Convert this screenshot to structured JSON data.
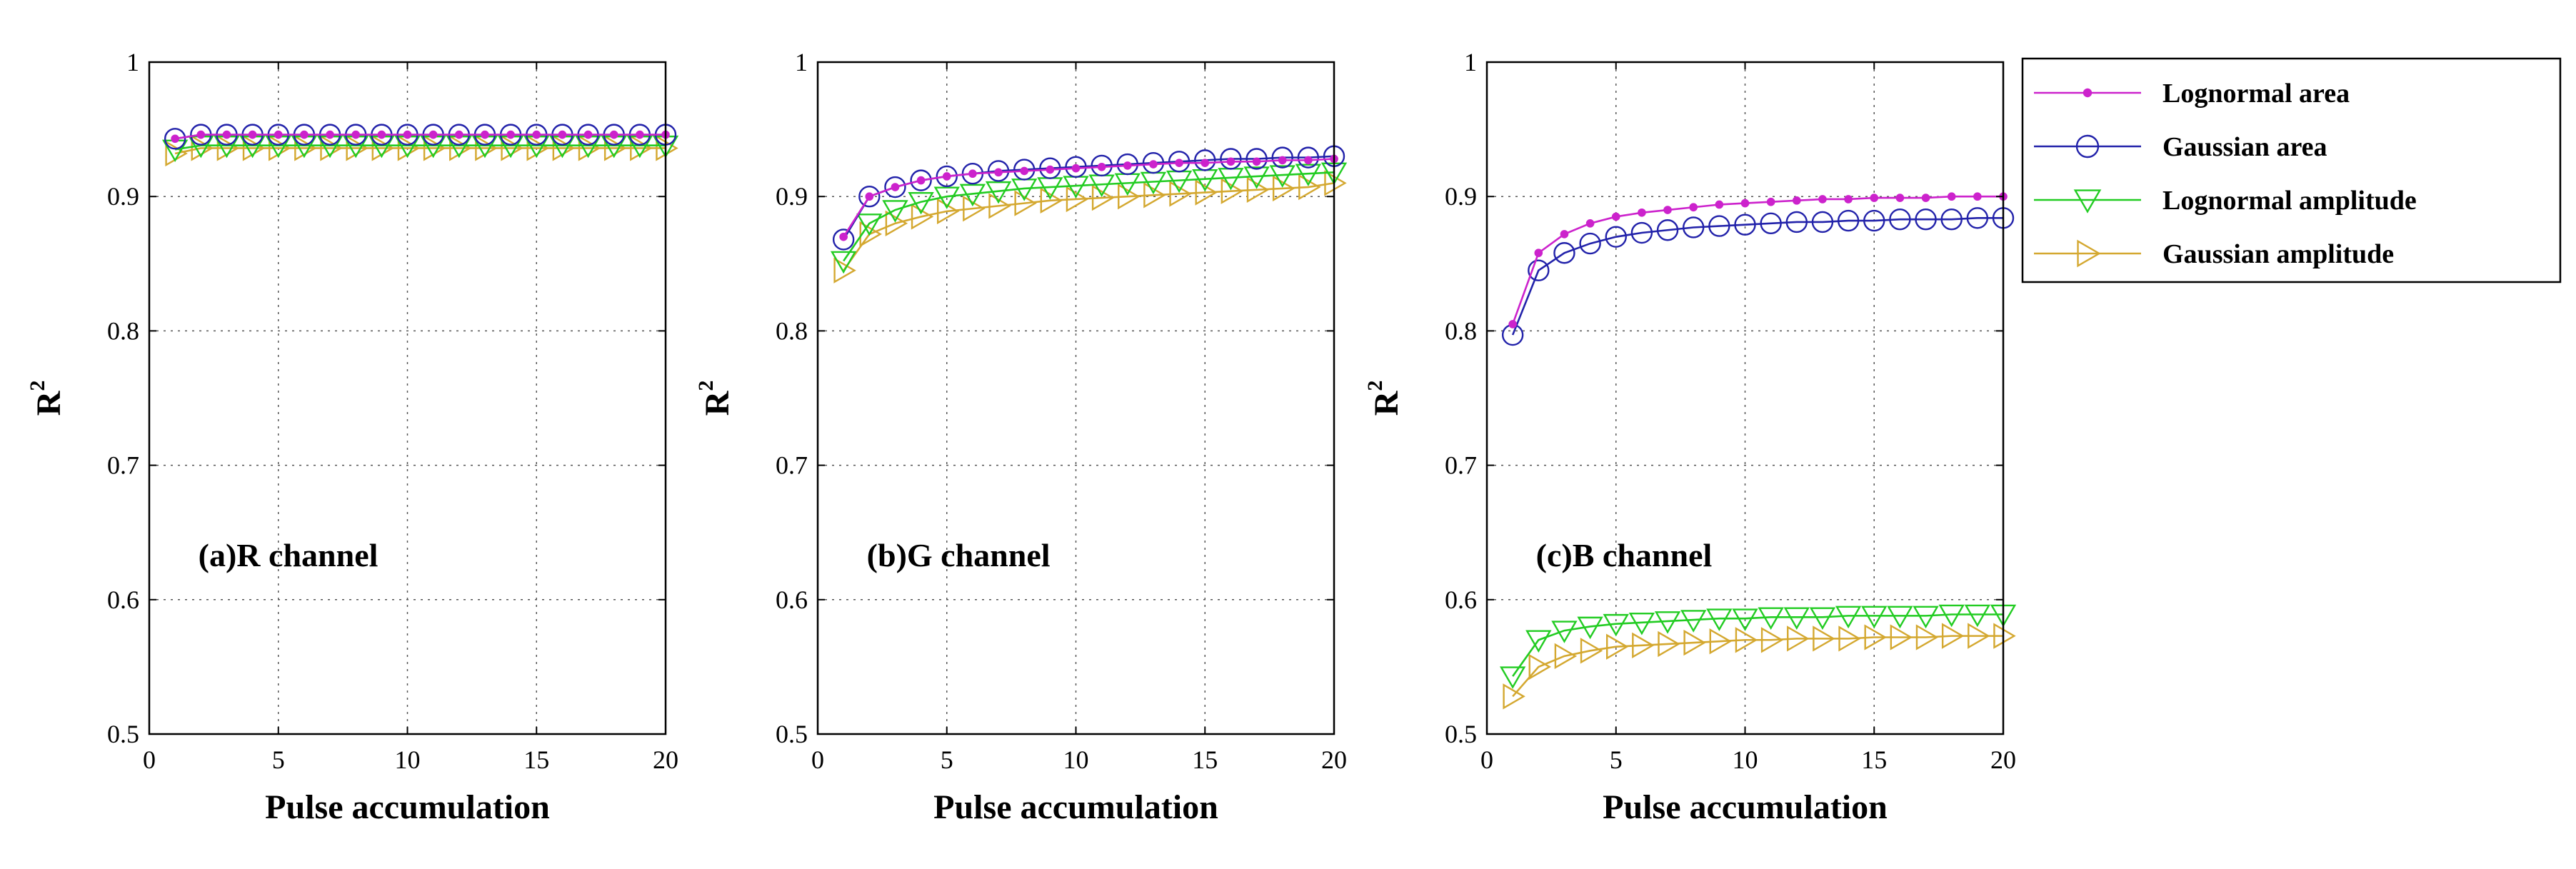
{
  "chart_data": [
    {
      "type": "line",
      "panel_label": "(a)R channel",
      "xlabel": "Pulse accumulation",
      "ylabel": "R",
      "ylabel_sup": "2",
      "xlim": [
        0,
        20
      ],
      "ylim": [
        0.5,
        1
      ],
      "xticks": [
        "0",
        "5",
        "10",
        "15",
        "20"
      ],
      "yticks": [
        "0.5",
        "0.6",
        "0.7",
        "0.8",
        "0.9",
        "1"
      ],
      "grid": true,
      "x": [
        1,
        2,
        3,
        4,
        5,
        6,
        7,
        8,
        9,
        10,
        11,
        12,
        13,
        14,
        15,
        16,
        17,
        18,
        19,
        20
      ],
      "series": [
        {
          "name": "Lognormal area",
          "values": [
            0.943,
            0.946,
            0.946,
            0.946,
            0.946,
            0.946,
            0.946,
            0.946,
            0.946,
            0.946,
            0.946,
            0.946,
            0.946,
            0.946,
            0.946,
            0.946,
            0.946,
            0.946,
            0.946,
            0.946
          ]
        },
        {
          "name": "Gaussian area",
          "values": [
            0.943,
            0.946,
            0.946,
            0.946,
            0.946,
            0.946,
            0.946,
            0.946,
            0.946,
            0.946,
            0.946,
            0.946,
            0.946,
            0.946,
            0.946,
            0.946,
            0.946,
            0.946,
            0.946,
            0.946
          ]
        },
        {
          "name": "Lognormal amplitude",
          "values": [
            0.935,
            0.938,
            0.938,
            0.938,
            0.938,
            0.938,
            0.938,
            0.938,
            0.938,
            0.938,
            0.938,
            0.938,
            0.938,
            0.938,
            0.938,
            0.938,
            0.938,
            0.938,
            0.938,
            0.938
          ]
        },
        {
          "name": "Gaussian amplitude",
          "values": [
            0.932,
            0.936,
            0.936,
            0.936,
            0.936,
            0.936,
            0.936,
            0.936,
            0.936,
            0.936,
            0.936,
            0.936,
            0.936,
            0.936,
            0.936,
            0.936,
            0.936,
            0.936,
            0.936,
            0.936
          ]
        }
      ]
    },
    {
      "type": "line",
      "panel_label": "(b)G channel",
      "xlabel": "Pulse accumulation",
      "ylabel": "R",
      "ylabel_sup": "2",
      "xlim": [
        0,
        20
      ],
      "ylim": [
        0.5,
        1
      ],
      "xticks": [
        "0",
        "5",
        "10",
        "15",
        "20"
      ],
      "yticks": [
        "0.5",
        "0.6",
        "0.7",
        "0.8",
        "0.9",
        "1"
      ],
      "grid": true,
      "x": [
        1,
        2,
        3,
        4,
        5,
        6,
        7,
        8,
        9,
        10,
        11,
        12,
        13,
        14,
        15,
        16,
        17,
        18,
        19,
        20
      ],
      "series": [
        {
          "name": "Lognormal area",
          "values": [
            0.87,
            0.9,
            0.907,
            0.912,
            0.915,
            0.917,
            0.918,
            0.919,
            0.92,
            0.921,
            0.922,
            0.923,
            0.924,
            0.925,
            0.925,
            0.926,
            0.926,
            0.927,
            0.927,
            0.928
          ]
        },
        {
          "name": "Gaussian area",
          "values": [
            0.868,
            0.9,
            0.907,
            0.912,
            0.915,
            0.917,
            0.919,
            0.92,
            0.921,
            0.922,
            0.923,
            0.924,
            0.925,
            0.926,
            0.927,
            0.928,
            0.928,
            0.929,
            0.929,
            0.93
          ]
        },
        {
          "name": "Lognormal amplitude",
          "values": [
            0.852,
            0.88,
            0.89,
            0.896,
            0.9,
            0.902,
            0.904,
            0.906,
            0.907,
            0.908,
            0.909,
            0.91,
            0.911,
            0.912,
            0.913,
            0.914,
            0.915,
            0.916,
            0.917,
            0.918
          ]
        },
        {
          "name": "Gaussian amplitude",
          "values": [
            0.845,
            0.872,
            0.88,
            0.885,
            0.889,
            0.891,
            0.893,
            0.895,
            0.897,
            0.898,
            0.899,
            0.9,
            0.901,
            0.902,
            0.903,
            0.904,
            0.905,
            0.906,
            0.907,
            0.91
          ]
        }
      ]
    },
    {
      "type": "line",
      "panel_label": "(c)B channel",
      "xlabel": "Pulse accumulation",
      "ylabel": "R",
      "ylabel_sup": "2",
      "xlim": [
        0,
        20
      ],
      "ylim": [
        0.5,
        1
      ],
      "xticks": [
        "0",
        "5",
        "10",
        "15",
        "20"
      ],
      "yticks": [
        "0.5",
        "0.6",
        "0.7",
        "0.8",
        "0.9",
        "1"
      ],
      "grid": true,
      "x": [
        1,
        2,
        3,
        4,
        5,
        6,
        7,
        8,
        9,
        10,
        11,
        12,
        13,
        14,
        15,
        16,
        17,
        18,
        19,
        20
      ],
      "series": [
        {
          "name": "Lognormal area",
          "values": [
            0.805,
            0.858,
            0.872,
            0.88,
            0.885,
            0.888,
            0.89,
            0.892,
            0.894,
            0.895,
            0.896,
            0.897,
            0.898,
            0.898,
            0.899,
            0.899,
            0.899,
            0.9,
            0.9,
            0.9
          ]
        },
        {
          "name": "Gaussian area",
          "values": [
            0.797,
            0.845,
            0.858,
            0.865,
            0.87,
            0.873,
            0.875,
            0.877,
            0.878,
            0.879,
            0.88,
            0.881,
            0.881,
            0.882,
            0.882,
            0.883,
            0.883,
            0.883,
            0.884,
            0.884
          ]
        },
        {
          "name": "Lognormal amplitude",
          "values": [
            0.543,
            0.57,
            0.577,
            0.58,
            0.582,
            0.583,
            0.584,
            0.585,
            0.586,
            0.586,
            0.587,
            0.587,
            0.587,
            0.588,
            0.588,
            0.588,
            0.588,
            0.589,
            0.589,
            0.589
          ]
        },
        {
          "name": "Gaussian amplitude",
          "values": [
            0.528,
            0.55,
            0.558,
            0.562,
            0.565,
            0.566,
            0.567,
            0.568,
            0.569,
            0.57,
            0.57,
            0.571,
            0.571,
            0.571,
            0.572,
            0.572,
            0.572,
            0.573,
            0.573,
            0.573
          ]
        }
      ]
    }
  ],
  "legend": {
    "placement": "right",
    "entries": [
      {
        "name": "Lognormal area",
        "color": "#cc22cc",
        "marker": "dot"
      },
      {
        "name": "Gaussian area",
        "color": "#2222aa",
        "marker": "circle"
      },
      {
        "name": "Lognormal amplitude",
        "color": "#22cc22",
        "marker": "triangle-down"
      },
      {
        "name": "Gaussian amplitude",
        "color": "#d4a830",
        "marker": "triangle-right"
      }
    ]
  }
}
